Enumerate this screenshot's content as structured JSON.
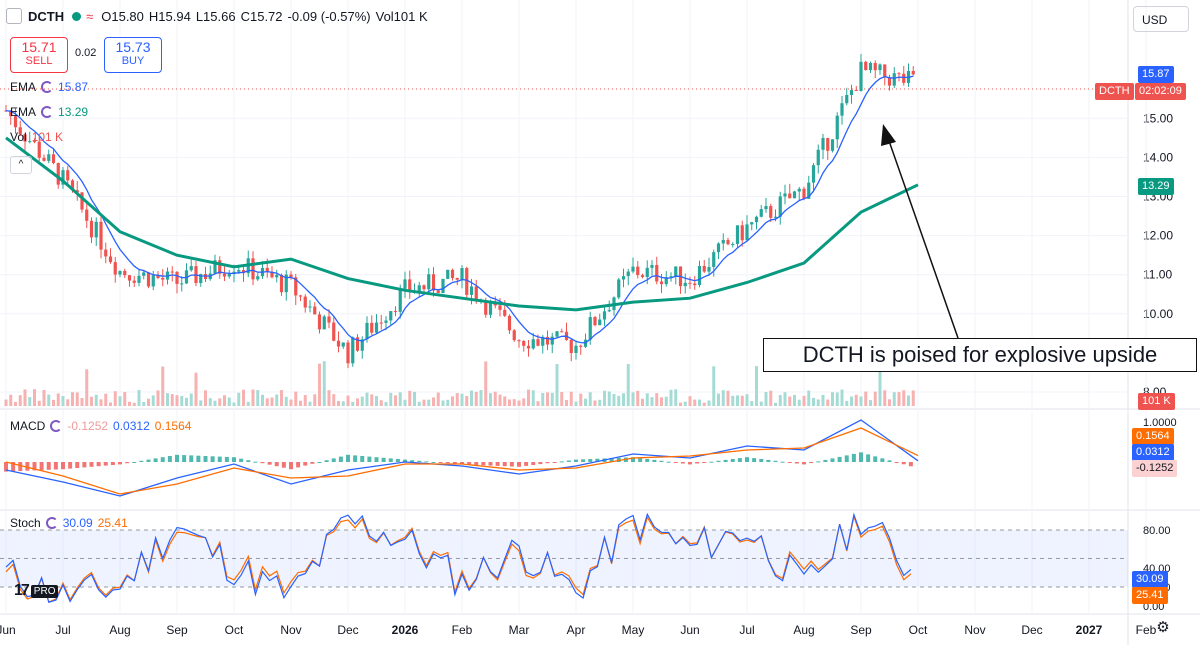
{
  "header": {
    "symbol": "DCTH",
    "open": "O15.80",
    "high": "H15.94",
    "low": "L15.66",
    "close": "C15.72",
    "change": "-0.09 (-0.57%)",
    "volume": "Vol101 K"
  },
  "trade": {
    "sell_price": "15.71",
    "sell_label": "SELL",
    "spread": "0.02",
    "buy_price": "15.73",
    "buy_label": "BUY"
  },
  "indicators": {
    "ema1_label": "EMA",
    "ema1_value": "15.87",
    "ema2_label": "EMA",
    "ema2_value": "13.29",
    "vol_label": "Vol",
    "vol_value": "101 K",
    "macd_label": "MACD",
    "macd_hist": "-0.1252",
    "macd_line": "0.0312",
    "macd_signal": "0.1564",
    "stoch_label": "Stoch",
    "stoch_k": "30.09",
    "stoch_d": "25.41"
  },
  "currency": "USD",
  "price_tags": {
    "ema_fast": "15.87",
    "symbol": "DCTH",
    "countdown": "02:02:09",
    "ema_slow": "13.29",
    "volume": "101 K",
    "macd_signal": "0.1564",
    "macd_line": "0.0312",
    "macd_hist": "-0.1252",
    "stoch_k": "30.09",
    "stoch_d": "25.41"
  },
  "annotation": "DCTH is poised for explosive upside",
  "logo": "PRO",
  "colors": {
    "up": "#26a69a",
    "down": "#ef5350",
    "ema_fast": "#2962ff",
    "ema_slow": "#089981",
    "macd_line": "#2962ff",
    "macd_signal": "#ff6d00",
    "stoch_k": "#2962ff",
    "stoch_d": "#ff6d00"
  },
  "chart_data": [
    {
      "type": "line",
      "title": "DCTH",
      "x": [
        "Jun",
        "Jul",
        "Aug",
        "Sep",
        "Oct",
        "Nov",
        "Dec",
        "2026",
        "Feb",
        "Mar",
        "Apr",
        "May",
        "Jun",
        "Jul",
        "Aug",
        "Sep",
        "Oct",
        "Nov",
        "Dec",
        "2027",
        "Feb"
      ],
      "series": [
        {
          "values": [
            15.2,
            13.4,
            11.1,
            10.8,
            11.3,
            10.7,
            9.0,
            10.6,
            10.9,
            9.4,
            9.2,
            11.1,
            10.9,
            12.2,
            13.2,
            16.2,
            15.9,
            null,
            null,
            null,
            null
          ]
        },
        {
          "values": [
            14.5,
            13.4,
            12.1,
            11.5,
            11.2,
            11.4,
            10.9,
            10.6,
            10.4,
            10.2,
            10.1,
            10.3,
            10.4,
            10.8,
            11.3,
            12.6,
            13.3,
            null,
            null,
            null,
            null
          ]
        }
      ],
      "yticks": [
        8.0,
        10.0,
        11.0,
        12.0,
        13.0,
        14.0,
        15.0
      ],
      "ylim": [
        8.0,
        16.7
      ],
      "grid": true
    },
    {
      "type": "line",
      "title": "MACD",
      "x": [
        "Jun",
        "Jul",
        "Aug",
        "Sep",
        "Oct",
        "Nov",
        "Dec",
        "2026",
        "Feb",
        "Mar",
        "Apr",
        "May",
        "Jun",
        "Jul",
        "Aug",
        "Sep",
        "Oct"
      ],
      "series": [
        {
          "values": [
            -0.2,
            -0.5,
            -0.85,
            -0.4,
            -0.05,
            -0.55,
            -0.2,
            0.0,
            -0.1,
            -0.3,
            -0.1,
            0.2,
            0.1,
            0.4,
            0.3,
            1.05,
            0.03
          ]
        },
        {
          "values": [
            0.0,
            -0.35,
            -0.8,
            -0.55,
            -0.15,
            -0.4,
            -0.35,
            -0.05,
            -0.05,
            -0.2,
            -0.15,
            0.1,
            0.15,
            0.3,
            0.35,
            0.85,
            0.16
          ]
        }
      ],
      "yticks": [
        1.0
      ]
    },
    {
      "type": "line",
      "title": "Stoch",
      "x": [
        "Jun",
        "Jul",
        "Aug",
        "Sep",
        "Oct",
        "Nov",
        "Dec",
        "2026",
        "Feb",
        "Mar",
        "Apr",
        "May",
        "Jun",
        "Jul",
        "Aug",
        "Sep",
        "Oct"
      ],
      "series": [
        {
          "values": [
            35,
            10,
            20,
            85,
            40,
            10,
            90,
            70,
            25,
            60,
            15,
            90,
            60,
            80,
            20,
            95,
            30
          ]
        },
        {
          "values": [
            30,
            12,
            22,
            80,
            45,
            15,
            85,
            72,
            28,
            55,
            20,
            85,
            62,
            78,
            25,
            92,
            25
          ]
        }
      ],
      "yticks": [
        0.0,
        20.0,
        40.0,
        80.0
      ],
      "ylim": [
        0,
        100
      ]
    }
  ]
}
